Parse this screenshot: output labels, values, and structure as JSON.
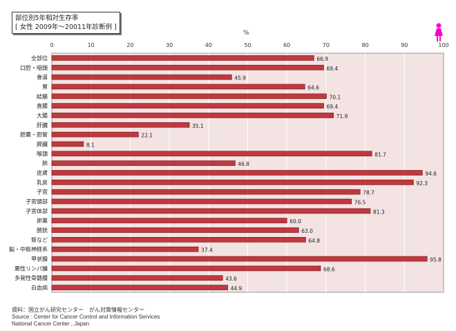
{
  "title": {
    "line1": "部位別5年相対生存率",
    "line2": "[ 女性  2009年～20011年診断例 ]"
  },
  "source": {
    "line1": "資料：国立がん研究センター　がん対策情報センター",
    "line2": "Source : Center for Cancer Control and Information Services",
    "line3": "National Cancer Center , Japan"
  },
  "colors": {
    "bar": "#c0393e",
    "plot_bg": "#f3e3e3",
    "female_icon": "#ff00cc"
  },
  "chart_data": {
    "type": "bar",
    "orientation": "horizontal",
    "xlabel": "%",
    "xlim": [
      0,
      100
    ],
    "xticks": [
      0,
      10,
      20,
      30,
      40,
      50,
      60,
      70,
      80,
      90,
      100
    ],
    "grid": true,
    "categories": [
      "全部位",
      "口腔・咽頭",
      "食道",
      "胃",
      "結腸",
      "直腸",
      "大腸",
      "肝臓",
      "胆嚢・胆管",
      "膵臓",
      "喉頭",
      "肺",
      "皮膚",
      "乳房",
      "子宮",
      "子宮頸部",
      "子宮体部",
      "卵巣",
      "膀胱",
      "腎など",
      "脳・中枢神経系",
      "甲状腺",
      "悪性リンパ腫",
      "多発性骨髄腫",
      "白血病"
    ],
    "values": [
      66.9,
      69.4,
      45.9,
      64.6,
      70.1,
      69.4,
      71.9,
      35.1,
      22.1,
      8.1,
      81.7,
      46.8,
      94.6,
      92.3,
      78.7,
      76.5,
      81.3,
      60.0,
      63.0,
      64.8,
      37.4,
      95.8,
      68.6,
      43.6,
      44.9
    ]
  }
}
